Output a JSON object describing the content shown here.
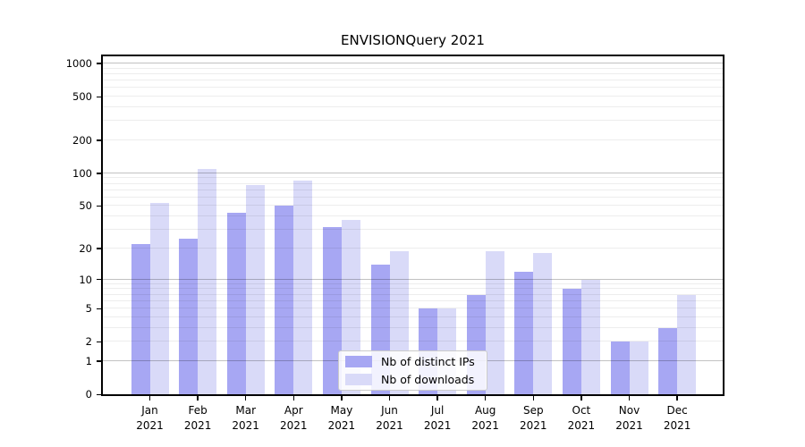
{
  "title": "ENVISIONQuery 2021",
  "chart_data": {
    "type": "bar",
    "title": "ENVISIONQuery 2021",
    "scale": "symlog (position proportional to ln(1+value))",
    "categories": [
      "Jan",
      "Feb",
      "Mar",
      "Apr",
      "May",
      "Jun",
      "Jul",
      "Aug",
      "Sep",
      "Oct",
      "Nov",
      "Dec"
    ],
    "category_year": "2021",
    "series": [
      {
        "name": "Nb of distinct IPs",
        "color_key": "ips",
        "values": [
          22,
          25,
          43,
          50,
          32,
          14,
          5,
          7,
          12,
          8,
          2,
          3
        ]
      },
      {
        "name": "Nb of downloads",
        "color_key": "downloads",
        "values": [
          53,
          110,
          78,
          85,
          37,
          19,
          5,
          19,
          18,
          10,
          2,
          7
        ]
      }
    ],
    "y_ticks": [
      0,
      1,
      2,
      5,
      10,
      20,
      50,
      100,
      200,
      500,
      1000
    ],
    "ylim": [
      0,
      1250
    ],
    "xlabel": "",
    "ylabel": "",
    "grid": true,
    "grid_major_at": [
      1,
      10,
      100,
      1000
    ],
    "legend_position": "lower-center-inside"
  },
  "colors": {
    "ips": "#a7a7f3",
    "downloads": "#d9daf8",
    "grid_major": "rgba(0,0,0,0.24)",
    "grid_minor": "rgba(0,0,0,0.07)",
    "spine": "#000000",
    "text": "#000000",
    "legend_border": "#cbcbcb",
    "legend_bg": "rgba(255,255,255,0.85)"
  }
}
